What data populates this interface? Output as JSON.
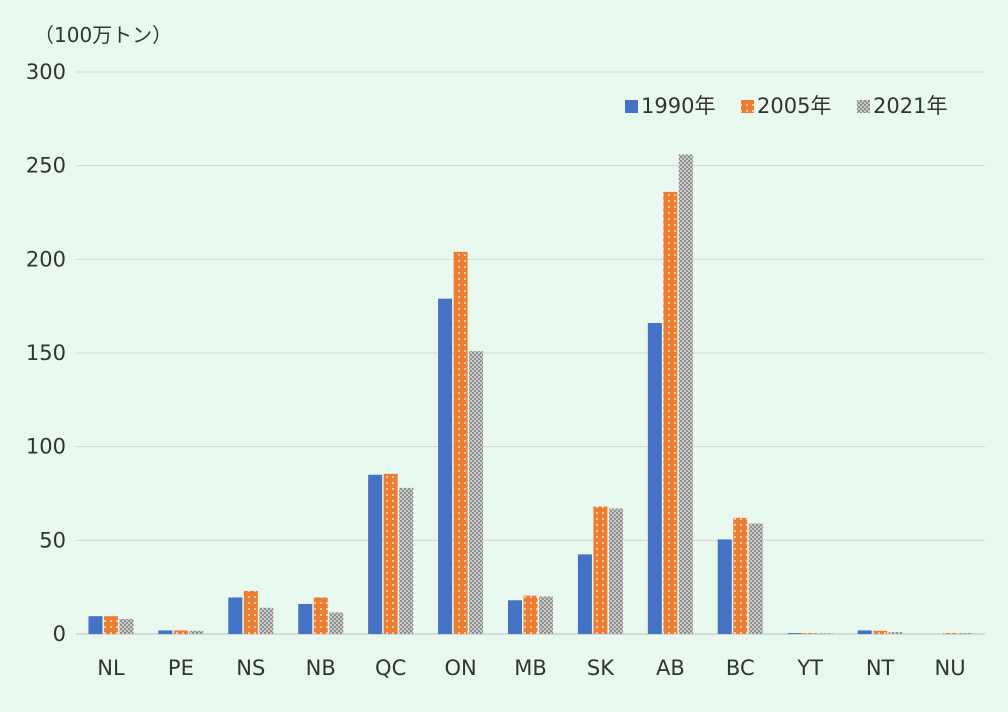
{
  "chart_data": {
    "type": "bar",
    "unit_label": "（100万トン）",
    "categories": [
      "NL",
      "PE",
      "NS",
      "NB",
      "QC",
      "ON",
      "MB",
      "SK",
      "AB",
      "BC",
      "YT",
      "NT",
      "NU"
    ],
    "series": [
      {
        "name": "1990年",
        "color": "#4472C4",
        "pattern": "solid",
        "values": [
          9.5,
          1.9,
          19.5,
          16,
          85,
          179,
          18,
          42.5,
          166,
          50.5,
          0.5,
          1.9,
          0
        ]
      },
      {
        "name": "2005年",
        "color": "#ED7D31",
        "pattern": "dots",
        "values": [
          9.5,
          1.9,
          23,
          19.5,
          85.5,
          204,
          20.5,
          68,
          236,
          62,
          0.5,
          1.7,
          0.5
        ]
      },
      {
        "name": "2021年",
        "color": "#A5A5A5",
        "pattern": "checker",
        "values": [
          8,
          1.7,
          14,
          11.5,
          78,
          151,
          20,
          67,
          256,
          59,
          0.4,
          1.0,
          0.5
        ]
      }
    ],
    "ylim": [
      0,
      300
    ],
    "yticks": [
      0,
      50,
      100,
      150,
      200,
      250,
      300
    ],
    "grid": true,
    "legend_position": "top-right"
  }
}
